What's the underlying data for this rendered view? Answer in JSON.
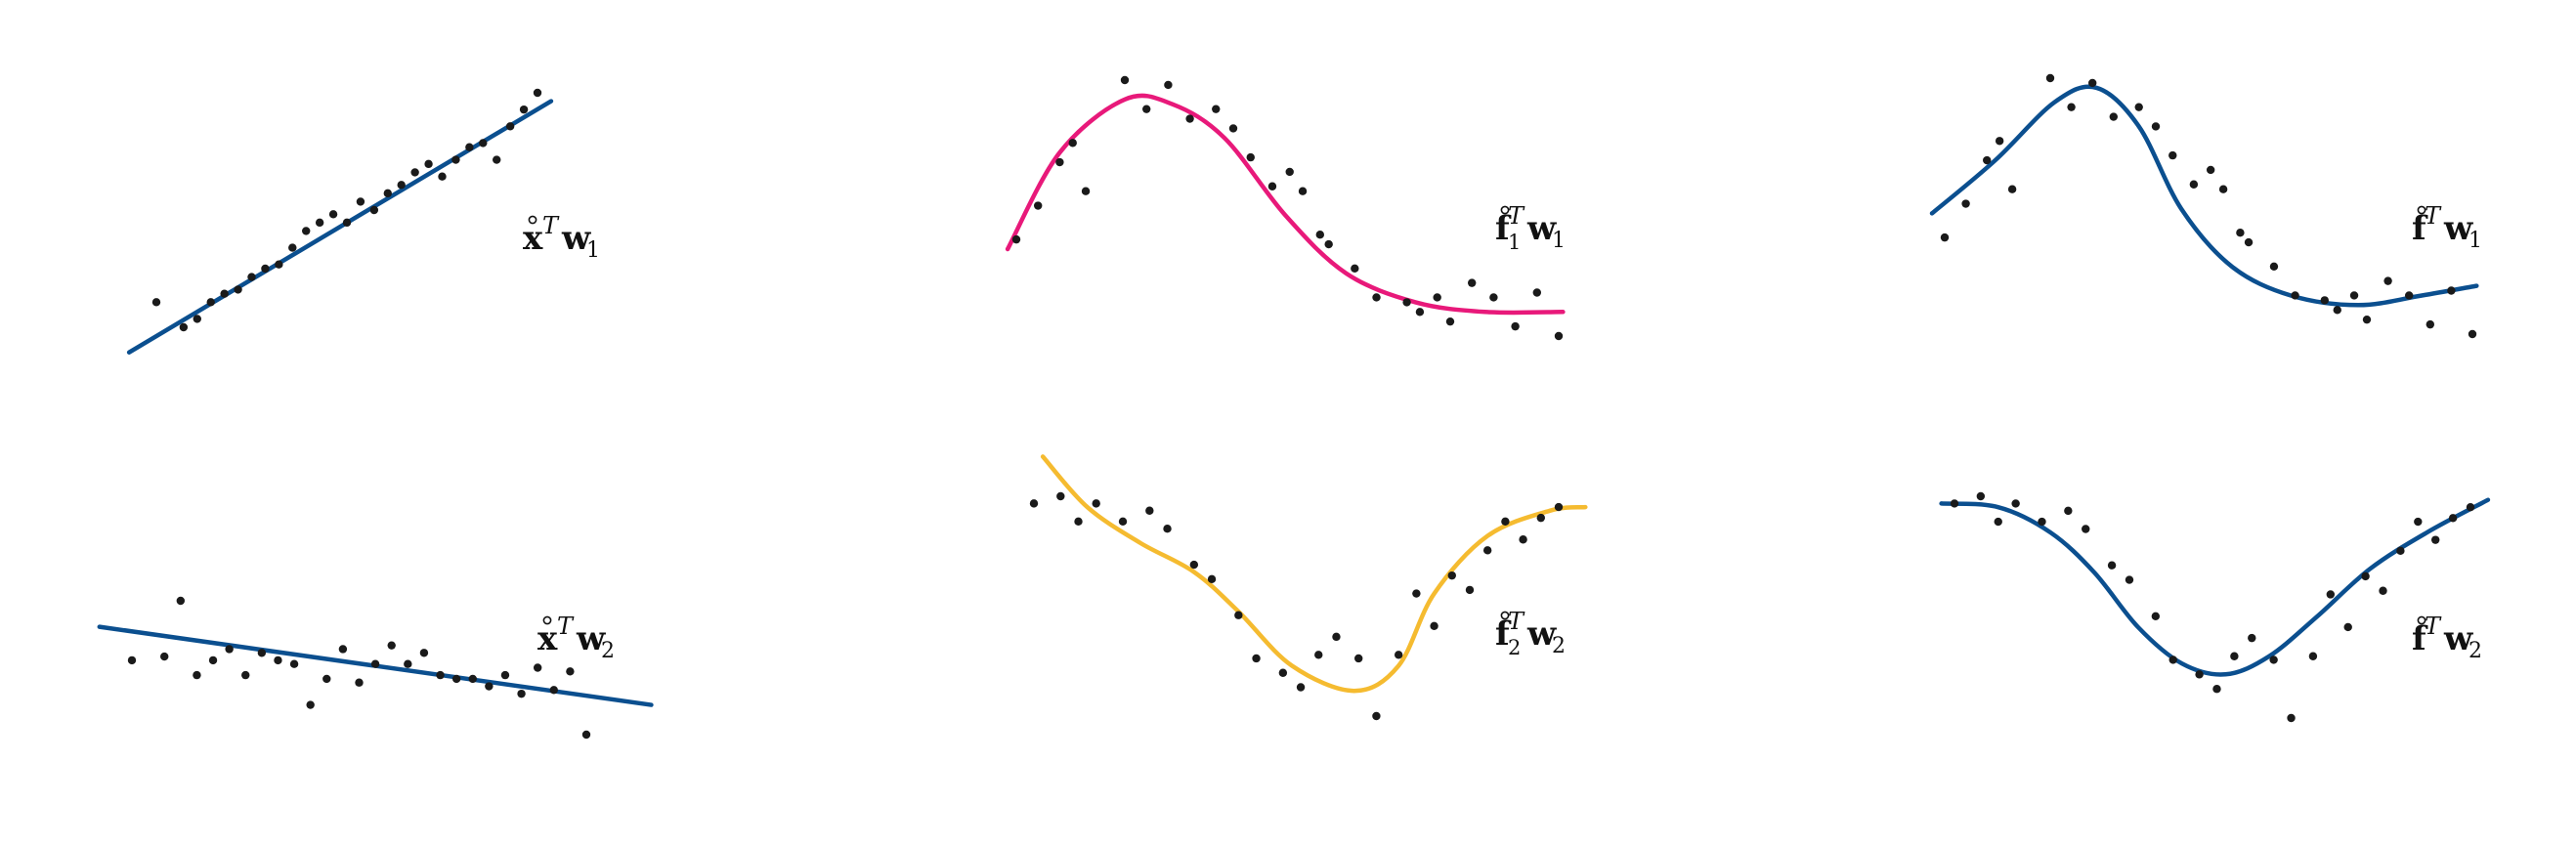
{
  "colors": {
    "linear": "#0b4f8f",
    "pink": "#e8197a",
    "gold": "#f5bb30",
    "points": "#1a1a1a"
  },
  "panels": [
    {
      "id": "linear-1",
      "label": {
        "base": "x",
        "sup": "T",
        "w": "w",
        "sub": "1",
        "sub_on_base": ""
      },
      "fit": "linear",
      "color_key": "linear",
      "x": [
        0,
        1,
        1.5,
        2,
        2.5,
        3,
        3.5,
        4,
        4.5,
        5,
        5.5,
        6,
        6.5,
        7,
        7.5,
        8,
        8.5,
        9,
        9.5,
        10,
        10.5,
        11,
        11.5,
        12,
        12.5,
        13,
        13.5,
        14
      ],
      "y": [
        1.2,
        0.6,
        0.8,
        1.2,
        1.4,
        1.5,
        1.8,
        2.0,
        2.1,
        2.5,
        2.9,
        3.1,
        3.3,
        3.1,
        3.6,
        3.4,
        3.8,
        4.0,
        4.3,
        4.5,
        4.2,
        4.6,
        4.9,
        5.0,
        4.6,
        5.4,
        5.8,
        6.2
      ],
      "line": {
        "x0": -1.0,
        "y0": 0.0,
        "x1": 14.5,
        "y1": 6.0
      }
    },
    {
      "id": "linear-2",
      "label": {
        "base": "x",
        "sup": "T",
        "w": "w",
        "sub": "2",
        "sub_on_base": ""
      },
      "fit": "linear",
      "color_key": "linear",
      "x": [
        0,
        1,
        1.5,
        2,
        2.5,
        3,
        3.5,
        4,
        4.5,
        5,
        5.5,
        6,
        6.5,
        7,
        7.5,
        8,
        8.5,
        9,
        9.5,
        10,
        10.5,
        11,
        11.5,
        12,
        12.5,
        13,
        13.5,
        14
      ],
      "y": [
        1.0,
        1.1,
        2.6,
        0.6,
        1.0,
        1.3,
        0.6,
        1.2,
        1.0,
        0.9,
        -0.2,
        0.5,
        1.3,
        0.4,
        0.9,
        1.4,
        0.9,
        1.2,
        0.6,
        0.5,
        0.5,
        0.3,
        0.6,
        0.1,
        0.8,
        0.2,
        0.7,
        -1.0
      ],
      "line": {
        "x0": -1.0,
        "y0": 1.9,
        "x1": 16.0,
        "y1": -0.2
      }
    },
    {
      "id": "nonlinear-pink",
      "label": {
        "base": "f",
        "sup": "T",
        "w": "w",
        "sub": "1",
        "sub_on_base": "1"
      },
      "fit": "curve",
      "color_key": "pink",
      "x": [
        0,
        0.5,
        1,
        1.3,
        1.6,
        2.5,
        3,
        3.5,
        4,
        4.6,
        5,
        5.4,
        5.9,
        6.3,
        6.6,
        7,
        7.2,
        7.8,
        8.3,
        9,
        9.3,
        9.7,
        10,
        10.5,
        11,
        11.5,
        12,
        12.5
      ],
      "y": [
        0.9,
        1.6,
        2.5,
        2.9,
        1.9,
        4.2,
        3.6,
        4.1,
        3.4,
        3.6,
        3.2,
        2.6,
        2.0,
        2.3,
        1.9,
        1.0,
        0.8,
        0.3,
        -0.3,
        -0.4,
        -0.6,
        -0.3,
        -0.8,
        0.0,
        -0.3,
        -0.9,
        -0.2,
        -1.1
      ],
      "curve": [
        [
          -0.2,
          0.7
        ],
        [
          1.0,
          2.7
        ],
        [
          2.5,
          3.8
        ],
        [
          3.6,
          3.7
        ],
        [
          4.8,
          3.0
        ],
        [
          6.2,
          1.4
        ],
        [
          7.6,
          0.2
        ],
        [
          9.2,
          -0.4
        ],
        [
          10.8,
          -0.6
        ],
        [
          12.6,
          -0.6
        ]
      ]
    },
    {
      "id": "nonlinear-blue-1",
      "label": {
        "base": "f",
        "sup": "T",
        "w": "w",
        "sub": "1",
        "sub_on_base": ""
      },
      "fit": "curve",
      "color_key": "linear",
      "x": [
        0,
        0.5,
        1,
        1.3,
        1.6,
        2.5,
        3,
        3.5,
        4,
        4.6,
        5,
        5.4,
        5.9,
        6.3,
        6.6,
        7,
        7.2,
        7.8,
        8.3,
        9,
        9.3,
        9.7,
        10,
        10.5,
        11,
        11.5,
        12,
        12.5
      ],
      "y": [
        0.9,
        1.6,
        2.5,
        2.9,
        1.9,
        4.2,
        3.6,
        4.1,
        3.4,
        3.6,
        3.2,
        2.6,
        2.0,
        2.3,
        1.9,
        1.0,
        0.8,
        0.3,
        -0.3,
        -0.4,
        -0.6,
        -0.3,
        -0.8,
        0.0,
        -0.3,
        -0.9,
        -0.2,
        -1.1
      ],
      "curve": [
        [
          -0.3,
          1.4
        ],
        [
          1.2,
          2.5
        ],
        [
          2.6,
          3.7
        ],
        [
          3.6,
          4.0
        ],
        [
          4.6,
          3.2
        ],
        [
          5.6,
          1.5
        ],
        [
          6.8,
          0.3
        ],
        [
          8.2,
          -0.3
        ],
        [
          9.8,
          -0.5
        ],
        [
          11.3,
          -0.3
        ],
        [
          12.6,
          -0.1
        ]
      ]
    },
    {
      "id": "nonlinear-gold",
      "label": {
        "base": "f",
        "sup": "T",
        "w": "w",
        "sub": "2",
        "sub_on_base": "2"
      },
      "fit": "curve",
      "color_key": "gold",
      "x": [
        0,
        0.6,
        1,
        1.4,
        2,
        2.6,
        3,
        3.6,
        4,
        4.6,
        5,
        5.6,
        6,
        6.4,
        6.8,
        7.3,
        7.7,
        8.2,
        8.6,
        9,
        9.4,
        9.8,
        10.2,
        10.6,
        11,
        11.4,
        11.8
      ],
      "y": [
        3.1,
        3.3,
        2.6,
        3.1,
        2.6,
        2.9,
        2.4,
        1.4,
        1.0,
        0.0,
        -1.2,
        -1.6,
        -2.0,
        -1.1,
        -0.6,
        -1.2,
        -2.8,
        -1.1,
        0.6,
        -0.3,
        1.1,
        0.7,
        1.8,
        2.6,
        2.1,
        2.7,
        3.0
      ],
      "curve": [
        [
          0.2,
          4.4
        ],
        [
          1.2,
          3.0
        ],
        [
          2.4,
          2.0
        ],
        [
          3.6,
          1.2
        ],
        [
          4.6,
          0.1
        ],
        [
          5.8,
          -1.4
        ],
        [
          7.2,
          -2.1
        ],
        [
          8.2,
          -1.4
        ],
        [
          9.0,
          0.6
        ],
        [
          10.2,
          2.2
        ],
        [
          11.6,
          2.9
        ],
        [
          12.4,
          3.0
        ]
      ]
    },
    {
      "id": "nonlinear-blue-2",
      "label": {
        "base": "f",
        "sup": "T",
        "w": "w",
        "sub": "2",
        "sub_on_base": ""
      },
      "fit": "curve",
      "color_key": "linear",
      "x": [
        0,
        0.6,
        1,
        1.4,
        2,
        2.6,
        3,
        3.6,
        4,
        4.6,
        5,
        5.6,
        6,
        6.4,
        6.8,
        7.3,
        7.7,
        8.2,
        8.6,
        9,
        9.4,
        9.8,
        10.2,
        10.6,
        11,
        11.4,
        11.8
      ],
      "y": [
        3.1,
        3.3,
        2.6,
        3.1,
        2.6,
        2.9,
        2.4,
        1.4,
        1.0,
        0.0,
        -1.2,
        -1.6,
        -2.0,
        -1.1,
        -0.6,
        -1.2,
        -2.8,
        -1.1,
        0.6,
        -0.3,
        1.1,
        0.7,
        1.8,
        2.6,
        2.1,
        2.7,
        3.0
      ],
      "curve": [
        [
          -0.3,
          3.1
        ],
        [
          1.0,
          3.0
        ],
        [
          2.2,
          2.3
        ],
        [
          3.2,
          1.2
        ],
        [
          4.2,
          -0.3
        ],
        [
          5.2,
          -1.3
        ],
        [
          6.2,
          -1.6
        ],
        [
          7.2,
          -1.1
        ],
        [
          8.3,
          0.0
        ],
        [
          9.5,
          1.3
        ],
        [
          10.8,
          2.3
        ],
        [
          12.2,
          3.2
        ]
      ]
    }
  ]
}
